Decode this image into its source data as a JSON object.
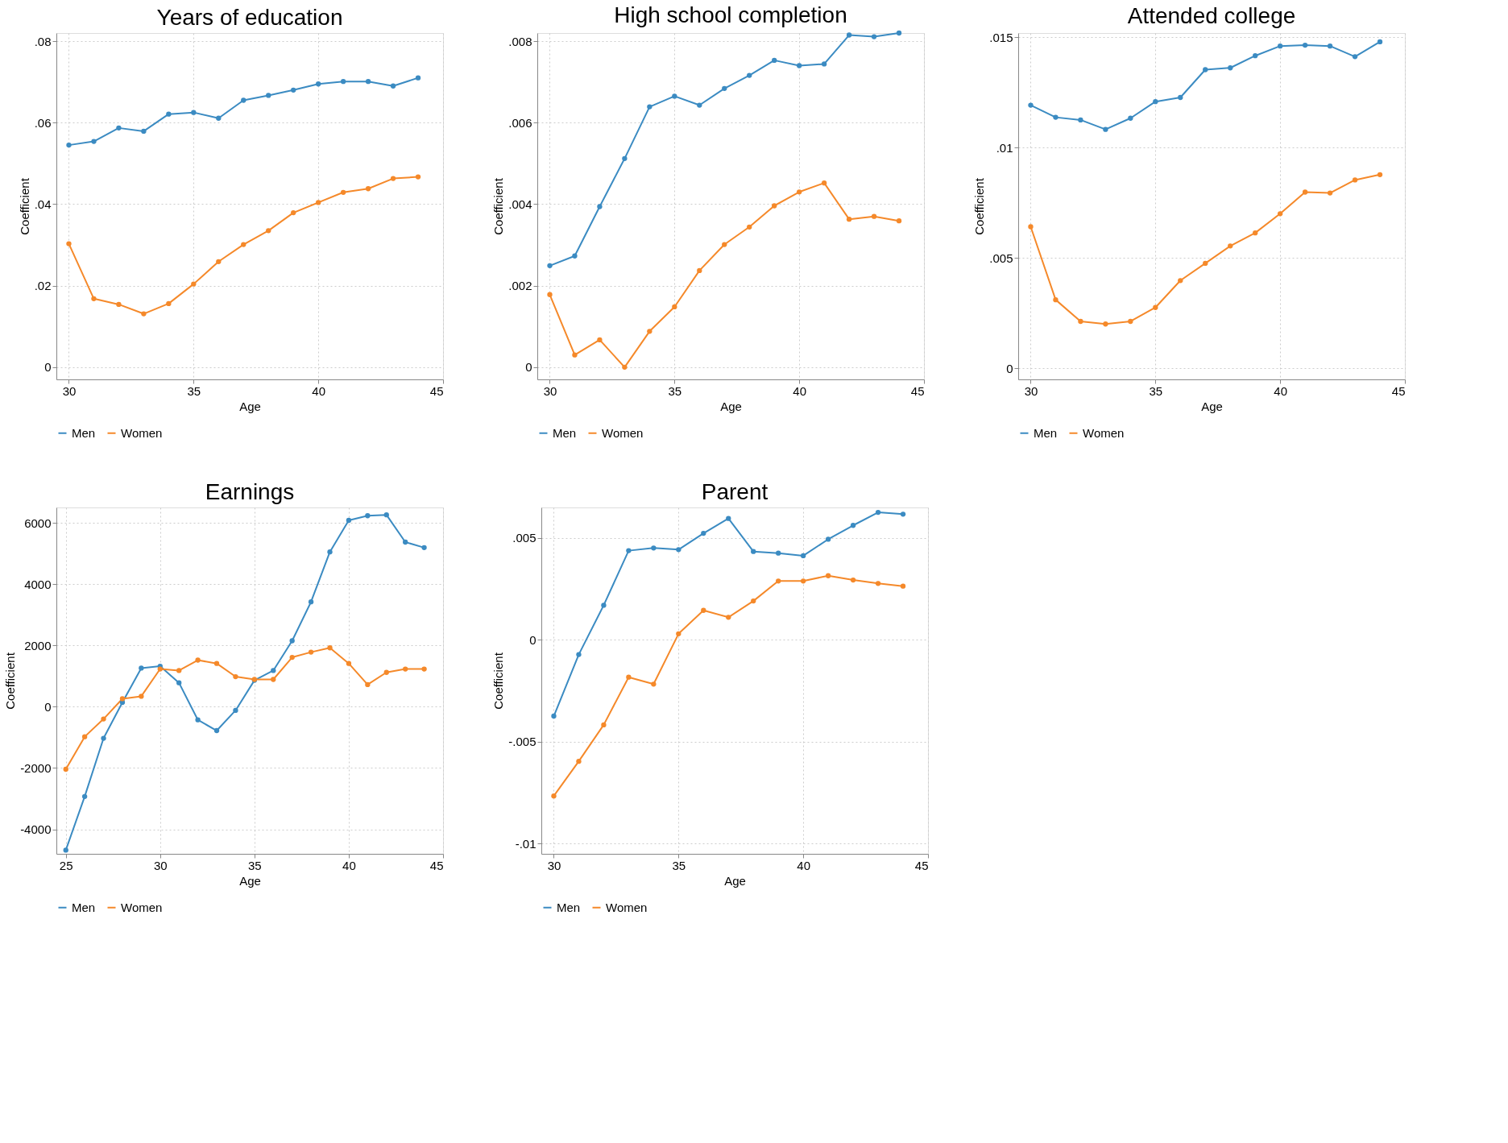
{
  "chart_data": [
    {
      "type": "line",
      "title": "Years of education",
      "xlabel": "Age",
      "ylabel": "Coefficient",
      "grid": true,
      "legend": "bottom",
      "marker": "circle",
      "line_style": "solid",
      "x": [
        30,
        31,
        32,
        33,
        34,
        35,
        36,
        37,
        38,
        39,
        40,
        41,
        42,
        43,
        44
      ],
      "xlim": [
        29.5,
        45
      ],
      "xticks": [
        30,
        35,
        40,
        45
      ],
      "ylim": [
        -0.003,
        0.082
      ],
      "yticks": [
        {
          "value": 0,
          "label": "0"
        },
        {
          "value": 0.02,
          "label": ".02"
        },
        {
          "value": 0.04,
          "label": ".04"
        },
        {
          "value": 0.06,
          "label": ".06"
        },
        {
          "value": 0.08,
          "label": ".08"
        }
      ],
      "series": [
        {
          "name": "Men",
          "color": "#3b8bc2",
          "values": [
            0.0545,
            0.0554,
            0.0587,
            0.0579,
            0.0621,
            0.0625,
            0.0611,
            0.0655,
            0.0667,
            0.068,
            0.0695,
            0.0701,
            0.0701,
            0.069,
            0.071
          ]
        },
        {
          "name": "Women",
          "color": "#f5892a",
          "values": [
            0.0303,
            0.0168,
            0.0154,
            0.0131,
            0.0156,
            0.0204,
            0.0259,
            0.0301,
            0.0335,
            0.0379,
            0.0404,
            0.0429,
            0.0438,
            0.0463,
            0.0467
          ]
        }
      ]
    },
    {
      "type": "line",
      "title": "High school completion",
      "xlabel": "Age",
      "ylabel": "Coefficient",
      "grid": true,
      "legend": "bottom",
      "marker": "circle",
      "line_style": "solid",
      "x": [
        30,
        31,
        32,
        33,
        34,
        35,
        36,
        37,
        38,
        39,
        40,
        41,
        42,
        43,
        44
      ],
      "xlim": [
        29.5,
        45
      ],
      "xticks": [
        30,
        35,
        40,
        45
      ],
      "ylim": [
        -0.0003,
        0.0082
      ],
      "yticks": [
        {
          "value": 0,
          "label": "0"
        },
        {
          "value": 0.002,
          "label": ".002"
        },
        {
          "value": 0.004,
          "label": ".004"
        },
        {
          "value": 0.006,
          "label": ".006"
        },
        {
          "value": 0.008,
          "label": ".008"
        }
      ],
      "series": [
        {
          "name": "Men",
          "color": "#3b8bc2",
          "values": [
            0.00249,
            0.00273,
            0.00394,
            0.00512,
            0.00639,
            0.00665,
            0.00643,
            0.00684,
            0.00716,
            0.00753,
            0.0074,
            0.00744,
            0.00815,
            0.00811,
            0.0082
          ]
        },
        {
          "name": "Women",
          "color": "#f5892a",
          "values": [
            0.00178,
            0.0003,
            0.00067,
            0,
            0.00088,
            0.00148,
            0.00237,
            0.00301,
            0.00344,
            0.00396,
            0.0043,
            0.00452,
            0.00363,
            0.0037,
            0.00359
          ]
        }
      ]
    },
    {
      "type": "line",
      "title": "Attended college",
      "xlabel": "Age",
      "ylabel": "Coefficient",
      "grid": true,
      "legend": "bottom",
      "marker": "circle",
      "line_style": "solid",
      "x": [
        30,
        31,
        32,
        33,
        34,
        35,
        36,
        37,
        38,
        39,
        40,
        41,
        42,
        43,
        44
      ],
      "xlim": [
        29.5,
        45
      ],
      "xticks": [
        30,
        35,
        40,
        45
      ],
      "ylim": [
        -0.0005,
        0.0152
      ],
      "yticks": [
        {
          "value": 0,
          "label": "0"
        },
        {
          "value": 0.005,
          "label": ".005"
        },
        {
          "value": 0.01,
          "label": ".01"
        },
        {
          "value": 0.015,
          "label": ".015"
        }
      ],
      "series": [
        {
          "name": "Men",
          "color": "#3b8bc2",
          "values": [
            0.01193,
            0.01138,
            0.01126,
            0.01083,
            0.01134,
            0.01209,
            0.01228,
            0.01354,
            0.01362,
            0.01417,
            0.01461,
            0.01465,
            0.01461,
            0.01413,
            0.0148
          ]
        },
        {
          "name": "Women",
          "color": "#f5892a",
          "values": [
            0.00642,
            0.00311,
            0.00213,
            0.00201,
            0.00213,
            0.00276,
            0.00398,
            0.00476,
            0.00555,
            0.00614,
            0.00701,
            0.00799,
            0.00795,
            0.00854,
            0.00878
          ]
        }
      ]
    },
    {
      "type": "line",
      "title": "Earnings",
      "xlabel": "Age",
      "ylabel": "Coefficient",
      "grid": true,
      "legend": "bottom",
      "marker": "circle",
      "line_style": "solid",
      "x": [
        25,
        26,
        27,
        28,
        29,
        30,
        31,
        32,
        33,
        34,
        35,
        36,
        37,
        38,
        39,
        40,
        41,
        42,
        43,
        44
      ],
      "xlim": [
        24.5,
        45
      ],
      "xticks": [
        25,
        30,
        35,
        40,
        45
      ],
      "ylim": [
        -4800,
        6500
      ],
      "yticks": [
        {
          "value": -4000,
          "label": "-4000"
        },
        {
          "value": -2000,
          "label": "-2000"
        },
        {
          "value": 0,
          "label": "0"
        },
        {
          "value": 2000,
          "label": "2000"
        },
        {
          "value": 4000,
          "label": "4000"
        },
        {
          "value": 6000,
          "label": "6000"
        }
      ],
      "series": [
        {
          "name": "Men",
          "color": "#3b8bc2",
          "values": [
            -4680,
            -2930,
            -1030,
            140,
            1260,
            1320,
            780,
            -430,
            -780,
            -120,
            860,
            1180,
            2150,
            3420,
            5050,
            6080,
            6230,
            6260,
            5370,
            5190
          ]
        },
        {
          "name": "Women",
          "color": "#f5892a",
          "values": [
            -2040,
            -980,
            -400,
            260,
            340,
            1230,
            1180,
            1520,
            1410,
            980,
            890,
            890,
            1610,
            1780,
            1920,
            1410,
            720,
            1120,
            1230,
            1230
          ]
        }
      ]
    },
    {
      "type": "line",
      "title": "Parent",
      "xlabel": "Age",
      "ylabel": "Coefficient",
      "grid": true,
      "legend": "bottom",
      "marker": "circle",
      "line_style": "solid",
      "x": [
        30,
        31,
        32,
        33,
        34,
        35,
        36,
        37,
        38,
        39,
        40,
        41,
        42,
        43,
        44
      ],
      "xlim": [
        29.5,
        45
      ],
      "xticks": [
        30,
        35,
        40,
        45
      ],
      "ylim": [
        -0.0105,
        0.0065
      ],
      "yticks": [
        {
          "value": -0.01,
          "label": "-.01"
        },
        {
          "value": -0.005,
          "label": "-.005"
        },
        {
          "value": 0,
          "label": "0"
        },
        {
          "value": 0.005,
          "label": ".005"
        }
      ],
      "series": [
        {
          "name": "Men",
          "color": "#3b8bc2",
          "values": [
            -0.00374,
            -0.00072,
            0.0017,
            0.00438,
            0.00451,
            0.00443,
            0.00523,
            0.00596,
            0.00434,
            0.00426,
            0.00413,
            0.00494,
            0.00562,
            0.00626,
            0.00617
          ]
        },
        {
          "name": "Women",
          "color": "#f5892a",
          "values": [
            -0.00766,
            -0.00596,
            -0.00417,
            -0.00183,
            -0.00217,
            0.0003,
            0.00145,
            0.00111,
            0.00191,
            0.00289,
            0.00289,
            0.00315,
            0.00294,
            0.00277,
            0.00264
          ]
        }
      ]
    }
  ]
}
